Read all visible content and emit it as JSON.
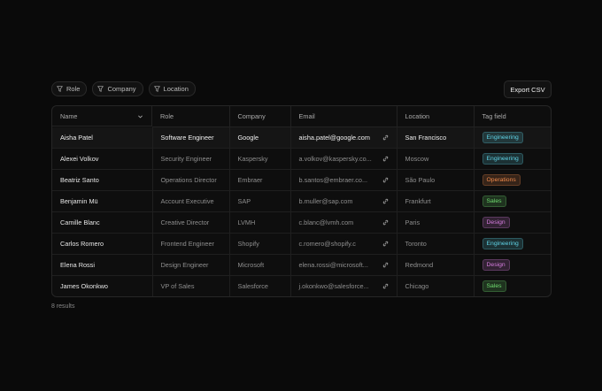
{
  "filters": [
    "Role",
    "Company",
    "Location"
  ],
  "export_button": "Export CSV",
  "table": {
    "headers": [
      "Name",
      "Role",
      "Company",
      "Email",
      "Location",
      "Tag field"
    ],
    "rows": [
      [
        "Aisha Patel",
        "Software Engineer",
        "Google",
        "aisha.patel@google.com",
        "San Francisco",
        "Engineering"
      ],
      [
        "Alexei Volkov",
        "Security Engineer",
        "Kaspersky",
        "a.volkov@kaspersky.co...",
        "Moscow",
        "Engineering"
      ],
      [
        "Beatriz Santo",
        "Operations Director",
        "Embraer",
        "b.santos@embraer.co...",
        "São Paulo",
        "Operations"
      ],
      [
        "Benjamin Mü",
        "Account Executive",
        "SAP",
        "b.muller@sap.com",
        "Frankfurt",
        "Sales"
      ],
      [
        "Camille Blanc",
        "Creative Director",
        "LVMH",
        "c.blanc@lvmh.com",
        "Paris",
        "Design"
      ],
      [
        "Carlos Romero",
        "Frontend Engineer",
        "Shopify",
        "c.romero@shopify.c",
        "Toronto",
        "Engineering"
      ],
      [
        "Elena Rossi",
        "Design Engineer",
        "Microsoft",
        "elena.rossi@microsoft...",
        "Redmond",
        "Design"
      ],
      [
        "James Okonkwo",
        "VP of Sales",
        "Salesforce",
        "j.okonkwo@salesforce...",
        "Chicago",
        "Sales"
      ]
    ],
    "tag_colors": [
      "#5fd3e6",
      "#5fd3e6",
      "#f08a4b",
      "#6fdc6f",
      "#d77ee0",
      "#5fd3e6",
      "#d77ee0",
      "#6fdc6f"
    ]
  },
  "footer": "8 results"
}
